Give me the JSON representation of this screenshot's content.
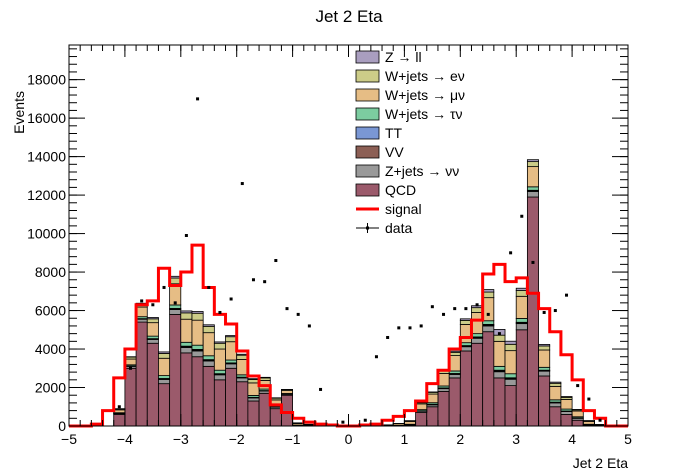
{
  "chart_data": {
    "type": "bar",
    "title": "Jet 2 Eta",
    "xlabel": "Jet 2 Eta",
    "ylabel": "Events",
    "xlim": [
      -5,
      5
    ],
    "ylim": [
      0,
      19800
    ],
    "x_ticks": [
      -5,
      -4,
      -3,
      -2,
      -1,
      0,
      1,
      2,
      3,
      4,
      5
    ],
    "y_ticks": [
      0,
      2000,
      4000,
      6000,
      8000,
      10000,
      12000,
      14000,
      16000,
      18000
    ],
    "bin_edges": [
      -5.0,
      -4.8,
      -4.6,
      -4.4,
      -4.2,
      -4.0,
      -3.8,
      -3.6,
      -3.4,
      -3.2,
      -3.0,
      -2.8,
      -2.6,
      -2.4,
      -2.2,
      -2.0,
      -1.8,
      -1.6,
      -1.4,
      -1.2,
      -1.0,
      -0.8,
      -0.6,
      -0.4,
      -0.2,
      0.0,
      0.2,
      0.4,
      0.6,
      0.8,
      1.0,
      1.2,
      1.4,
      1.6,
      1.8,
      2.0,
      2.2,
      2.4,
      2.6,
      2.8,
      3.0,
      3.2,
      3.4,
      3.6,
      3.8,
      4.0,
      4.2,
      4.4,
      4.6,
      4.8,
      5.0
    ],
    "stack_order": [
      "QCD",
      "Z+jets → νν",
      "VV",
      "TT",
      "W+jets → τν",
      "W+jets → μν",
      "W+jets → eν",
      "Z → ll"
    ],
    "series": [
      {
        "name": "Z → ll",
        "kind": "stack",
        "color": "#a99ebf",
        "values": [
          0,
          0,
          0,
          0,
          10,
          20,
          50,
          70,
          80,
          90,
          100,
          90,
          80,
          70,
          60,
          50,
          40,
          30,
          20,
          10,
          5,
          0,
          0,
          0,
          0,
          0,
          0,
          0,
          0,
          0,
          5,
          10,
          20,
          40,
          60,
          80,
          100,
          130,
          300,
          160,
          120,
          100,
          80,
          60,
          40,
          20,
          10,
          0,
          0,
          0
        ]
      },
      {
        "name": "W+jets → eν",
        "kind": "stack",
        "color": "#cccc88",
        "values": [
          0,
          0,
          0,
          0,
          50,
          100,
          150,
          200,
          250,
          300,
          330,
          360,
          330,
          300,
          260,
          220,
          180,
          130,
          90,
          50,
          30,
          20,
          10,
          5,
          0,
          0,
          0,
          0,
          0,
          10,
          30,
          60,
          90,
          130,
          170,
          210,
          250,
          290,
          320,
          330,
          300,
          260,
          210,
          160,
          110,
          60,
          30,
          10,
          0,
          0
        ]
      },
      {
        "name": "W+jets → μν",
        "kind": "stack",
        "color": "#e6bd85",
        "values": [
          0,
          0,
          0,
          0,
          150,
          300,
          500,
          700,
          900,
          1100,
          1200,
          1300,
          1200,
          1100,
          950,
          800,
          650,
          450,
          300,
          150,
          80,
          40,
          20,
          10,
          0,
          0,
          10,
          20,
          40,
          80,
          150,
          300,
          450,
          650,
          800,
          950,
          1100,
          1200,
          1300,
          1200,
          1150,
          1050,
          900,
          700,
          500,
          300,
          150,
          40,
          0,
          0
        ]
      },
      {
        "name": "W+jets → τν",
        "kind": "stack",
        "color": "#7ccca0",
        "values": [
          0,
          0,
          0,
          0,
          30,
          60,
          100,
          130,
          150,
          180,
          200,
          220,
          200,
          180,
          150,
          120,
          100,
          80,
          60,
          30,
          15,
          10,
          5,
          0,
          0,
          0,
          0,
          0,
          10,
          20,
          40,
          60,
          80,
          100,
          130,
          150,
          170,
          190,
          200,
          210,
          200,
          180,
          150,
          120,
          100,
          60,
          30,
          10,
          0,
          0
        ]
      },
      {
        "name": "TT",
        "kind": "stack",
        "color": "#7a97d4",
        "values": [
          0,
          0,
          0,
          0,
          5,
          10,
          15,
          20,
          25,
          30,
          35,
          40,
          35,
          30,
          25,
          20,
          15,
          10,
          8,
          5,
          2,
          0,
          0,
          0,
          0,
          0,
          0,
          0,
          0,
          2,
          5,
          10,
          15,
          20,
          25,
          30,
          35,
          40,
          40,
          38,
          35,
          30,
          25,
          20,
          15,
          10,
          5,
          0,
          0,
          0
        ]
      },
      {
        "name": "VV",
        "kind": "stack",
        "color": "#8c5f55",
        "values": [
          0,
          0,
          0,
          0,
          5,
          10,
          15,
          20,
          25,
          30,
          35,
          40,
          35,
          30,
          25,
          20,
          15,
          10,
          8,
          5,
          2,
          0,
          0,
          0,
          0,
          0,
          0,
          0,
          0,
          2,
          5,
          10,
          15,
          20,
          25,
          30,
          35,
          40,
          40,
          38,
          35,
          30,
          25,
          20,
          15,
          10,
          5,
          0,
          0,
          0
        ]
      },
      {
        "name": "Z+jets → νν",
        "kind": "stack",
        "color": "#999999",
        "values": [
          0,
          0,
          0,
          0,
          50,
          100,
          150,
          200,
          220,
          250,
          280,
          300,
          280,
          260,
          230,
          200,
          160,
          120,
          80,
          50,
          30,
          20,
          10,
          0,
          0,
          0,
          0,
          0,
          10,
          20,
          40,
          70,
          100,
          140,
          180,
          220,
          260,
          300,
          320,
          330,
          320,
          290,
          250,
          200,
          150,
          100,
          50,
          20,
          0,
          0
        ]
      },
      {
        "name": "QCD",
        "kind": "stack",
        "color": "#9b5a6b",
        "values": [
          0,
          0,
          0,
          0,
          600,
          3000,
          5400,
          4300,
          2200,
          5800,
          3800,
          3600,
          3100,
          2400,
          3000,
          2300,
          1300,
          1700,
          900,
          1600,
          0,
          0,
          0,
          0,
          0,
          0,
          0,
          0,
          0,
          0,
          0,
          700,
          1000,
          1800,
          2500,
          3900,
          4300,
          4900,
          2500,
          2100,
          5000,
          11900,
          2600,
          1000,
          600,
          300,
          0,
          0,
          0,
          0
        ]
      },
      {
        "name": "signal",
        "kind": "line",
        "color": "#ff0000",
        "values": [
          0,
          0,
          100,
          800,
          2500,
          4000,
          6300,
          6500,
          8200,
          7300,
          8000,
          9400,
          7200,
          5800,
          5300,
          3900,
          2600,
          2100,
          1100,
          700,
          400,
          200,
          100,
          50,
          0,
          0,
          50,
          100,
          300,
          500,
          800,
          1300,
          2200,
          2900,
          4000,
          4600,
          5500,
          7900,
          8400,
          7500,
          7700,
          6900,
          6100,
          4900,
          3700,
          2400,
          800,
          400,
          0,
          0
        ]
      },
      {
        "name": "data",
        "kind": "points",
        "color": "#000000",
        "values": [
          0,
          0,
          0,
          0,
          1000,
          3000,
          6500,
          6300,
          7200,
          6400,
          9900,
          17000,
          7200,
          5900,
          6600,
          12600,
          7600,
          7500,
          8600,
          6100,
          5800,
          5200,
          1900,
          0,
          200,
          0,
          300,
          3600,
          4600,
          5100,
          5100,
          5200,
          6200,
          5800,
          6100,
          6100,
          6300,
          5800,
          4800,
          9000,
          10900,
          8500,
          5900,
          6000,
          6800,
          2100,
          1400,
          300,
          0,
          0
        ]
      }
    ]
  }
}
